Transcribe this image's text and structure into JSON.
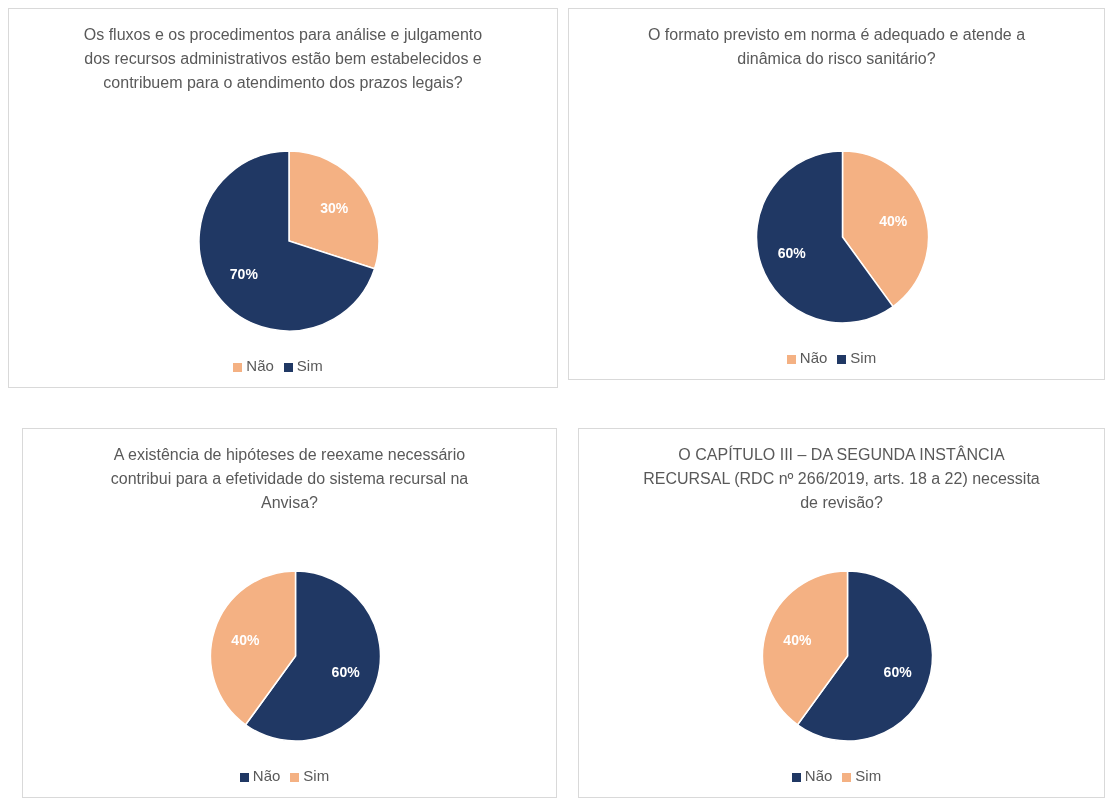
{
  "chart_data": [
    {
      "type": "pie",
      "title": "Os fluxos e os procedimentos para análise e julgamento dos recursos administrativos estão bem estabelecidos e contribuem para o atendimento dos prazos legais?",
      "categories": [
        "Não",
        "Sim"
      ],
      "values": [
        30,
        70
      ],
      "colors": [
        "#f4b183",
        "#203864"
      ],
      "value_labels": [
        "30%",
        "70%"
      ],
      "legend": "bottom"
    },
    {
      "type": "pie",
      "title": "O formato previsto em norma é adequado e atende a dinâmica do risco sanitário?",
      "categories": [
        "Não",
        "Sim"
      ],
      "values": [
        40,
        60
      ],
      "colors": [
        "#f4b183",
        "#203864"
      ],
      "value_labels": [
        "40%",
        "60%"
      ],
      "legend": "bottom"
    },
    {
      "type": "pie",
      "title": "A existência de hipóteses de reexame necessário contribui para a efetividade do sistema recursal na Anvisa?",
      "categories": [
        "Não",
        "Sim"
      ],
      "values": [
        60,
        40
      ],
      "colors": [
        "#203864",
        "#f4b183"
      ],
      "value_labels": [
        "60%",
        "40%"
      ],
      "legend": "bottom"
    },
    {
      "type": "pie",
      "title": "O CAPÍTULO III – DA SEGUNDA INSTÂNCIA RECURSAL (RDC nº 266/2019, arts. 18 a 22) necessita de revisão?",
      "categories": [
        "Não",
        "Sim"
      ],
      "values": [
        60,
        40
      ],
      "colors": [
        "#203864",
        "#f4b183"
      ],
      "value_labels": [
        "60%",
        "40%"
      ],
      "legend": "bottom"
    }
  ]
}
